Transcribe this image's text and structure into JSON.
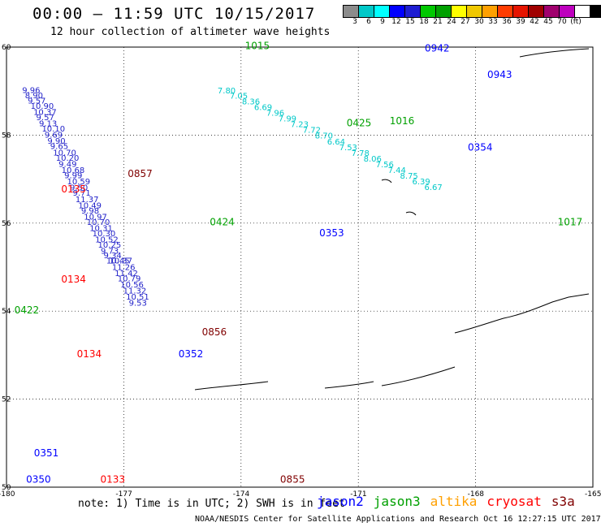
{
  "title": "00:00 – 11:59 UTC 10/15/2017",
  "subtitle": "12 hour collection of altimeter wave heights",
  "colorbar": {
    "colors": [
      "#8c8c8c",
      "#00c8c8",
      "#00ffff",
      "#0000ff",
      "#1e1ed2",
      "#00c800",
      "#00a000",
      "#ffff00",
      "#f0c800",
      "#ffa000",
      "#ff3c00",
      "#e61400",
      "#a00000",
      "#a0006e",
      "#be00be",
      "#ffffff",
      "#000000"
    ],
    "labels": [
      "3",
      "6",
      "9",
      "12",
      "15",
      "18",
      "21",
      "24",
      "27",
      "30",
      "33",
      "36",
      "39",
      "42",
      "45",
      "70",
      "(ft)"
    ]
  },
  "map": {
    "lat_range": [
      50,
      60
    ],
    "lon_range": [
      -180,
      -165
    ],
    "lat_ticks": [
      "60",
      "58",
      "56",
      "54",
      "52",
      "50"
    ],
    "lon_ticks": [
      "-180",
      "-177",
      "-174",
      "-171",
      "-168",
      "-165"
    ],
    "tracks": [
      {
        "color": "#1e1ec8",
        "points": [
          [
            "58.96",
            "9.96"
          ],
          [
            "58.84",
            "8.90"
          ],
          [
            "58.72",
            "9.57"
          ],
          [
            "58.60",
            "10.90"
          ],
          [
            "58.46",
            "10.37"
          ],
          [
            "58.34",
            "9.57"
          ],
          [
            "58.20",
            "9.13"
          ],
          [
            "58.08",
            "10.10"
          ],
          [
            "57.94",
            "9.69"
          ],
          [
            "57.80",
            "9.90"
          ],
          [
            "57.68",
            "9.65"
          ],
          [
            "57.54",
            "10.70"
          ],
          [
            "57.42",
            "10.20"
          ],
          [
            "57.28",
            "9.49"
          ],
          [
            "57.14",
            "10.68"
          ],
          [
            "57.02",
            "9.99"
          ],
          [
            "56.88",
            "10.59"
          ],
          [
            "56.74",
            "9.50"
          ],
          [
            "56.62",
            "9.71"
          ],
          [
            "56.48",
            "11.37"
          ],
          [
            "56.34",
            "10.49"
          ],
          [
            "56.22",
            "9.98"
          ],
          [
            "56.08",
            "10.97"
          ],
          [
            "55.96",
            "10.70"
          ],
          [
            "55.82",
            "10.31"
          ],
          [
            "55.70",
            "10.30"
          ],
          [
            "55.56",
            "10.52"
          ],
          [
            "55.44",
            "10.25"
          ],
          [
            "55.30",
            "9.73"
          ],
          [
            "55.20",
            "9.34"
          ],
          [
            "55.08",
            "10.45"
          ],
          [
            "55.08",
            "10.37"
          ],
          [
            "54.94",
            "11.26"
          ],
          [
            "54.80",
            "11.42"
          ],
          [
            "54.68",
            "10.79"
          ],
          [
            "54.54",
            "10.56"
          ],
          [
            "54.40",
            "11.32"
          ],
          [
            "54.26",
            "10.51"
          ],
          [
            "54.12",
            "9.53"
          ]
        ]
      },
      {
        "color": "#00c8c8",
        "points": [
          [
            "58.95",
            "7.80"
          ],
          [
            "58.83",
            "7.05"
          ],
          [
            "58.70",
            "8.36"
          ],
          [
            "58.57",
            "6.69"
          ],
          [
            "58.44",
            "7.96"
          ],
          [
            "58.31",
            "7.99"
          ],
          [
            "58.18",
            "7.23"
          ],
          [
            "58.05",
            "7.72"
          ],
          [
            "57.92",
            "8.70"
          ],
          [
            "57.79",
            "6.64"
          ],
          [
            "57.66",
            "7.53"
          ],
          [
            "57.53",
            "7.78"
          ],
          [
            "57.40",
            "8.06"
          ],
          [
            "57.27",
            "7.56"
          ],
          [
            "57.14",
            "7.44"
          ],
          [
            "57.01",
            "8.75"
          ],
          [
            "56.88",
            "6.39"
          ],
          [
            "56.75",
            "6.67"
          ]
        ]
      }
    ],
    "labels": [
      {
        "text": "1015",
        "color": "#00a000",
        "lat": 59.95,
        "lon": -173.9
      },
      {
        "text": "0942",
        "color": "#0000ff",
        "lat": 59.9,
        "lon": -169.3
      },
      {
        "text": "0943",
        "color": "#0000ff",
        "lat": 59.3,
        "lon": -167.7
      },
      {
        "text": "1016",
        "color": "#00a000",
        "lat": 58.25,
        "lon": -170.2
      },
      {
        "text": "0425",
        "color": "#00a000",
        "lat": 58.2,
        "lon": -171.3
      },
      {
        "text": "0354",
        "color": "#0000ff",
        "lat": 57.65,
        "lon": -168.2
      },
      {
        "text": "0857",
        "color": "#800000",
        "lat": 57.05,
        "lon": -176.9
      },
      {
        "text": "0135",
        "color": "#ff0000",
        "lat": 56.7,
        "lon": -178.6
      },
      {
        "text": "0424",
        "color": "#00a000",
        "lat": 55.95,
        "lon": -174.8
      },
      {
        "text": "1017",
        "color": "#00a000",
        "lat": 55.95,
        "lon": -165.9
      },
      {
        "text": "0353",
        "color": "#0000ff",
        "lat": 55.7,
        "lon": -172.0
      },
      {
        "text": "0134",
        "color": "#ff0000",
        "lat": 54.65,
        "lon": -178.6
      },
      {
        "text": "0422",
        "color": "#00a000",
        "lat": 53.95,
        "lon": -179.8
      },
      {
        "text": "0856",
        "color": "#800000",
        "lat": 53.45,
        "lon": -175.0
      },
      {
        "text": "0352",
        "color": "#0000ff",
        "lat": 52.95,
        "lon": -175.6
      },
      {
        "text": "0134",
        "color": "#ff0000",
        "lat": 52.95,
        "lon": -178.2
      },
      {
        "text": "0351",
        "color": "#0000ff",
        "lat": 50.7,
        "lon": -179.3
      },
      {
        "text": "0350",
        "color": "#0000ff",
        "lat": 50.1,
        "lon": -179.5
      },
      {
        "text": "0133",
        "color": "#ff0000",
        "lat": 50.1,
        "lon": -177.6
      },
      {
        "text": "0855",
        "color": "#800000",
        "lat": 50.1,
        "lon": -173.0
      }
    ]
  },
  "note": "note: 1) Time is in UTC; 2) SWH is in feet",
  "credit": "NOAA/NESDIS Center for Satellite Applications and Research   Oct 16 12:27:15 UTC 2017",
  "legend": [
    {
      "label": "jason2",
      "color": "#0000ff"
    },
    {
      "label": "jason3",
      "color": "#00a000"
    },
    {
      "label": "altika",
      "color": "#ffa000"
    },
    {
      "label": "cryosat",
      "color": "#ff0000"
    },
    {
      "label": "s3a",
      "color": "#800000"
    }
  ]
}
